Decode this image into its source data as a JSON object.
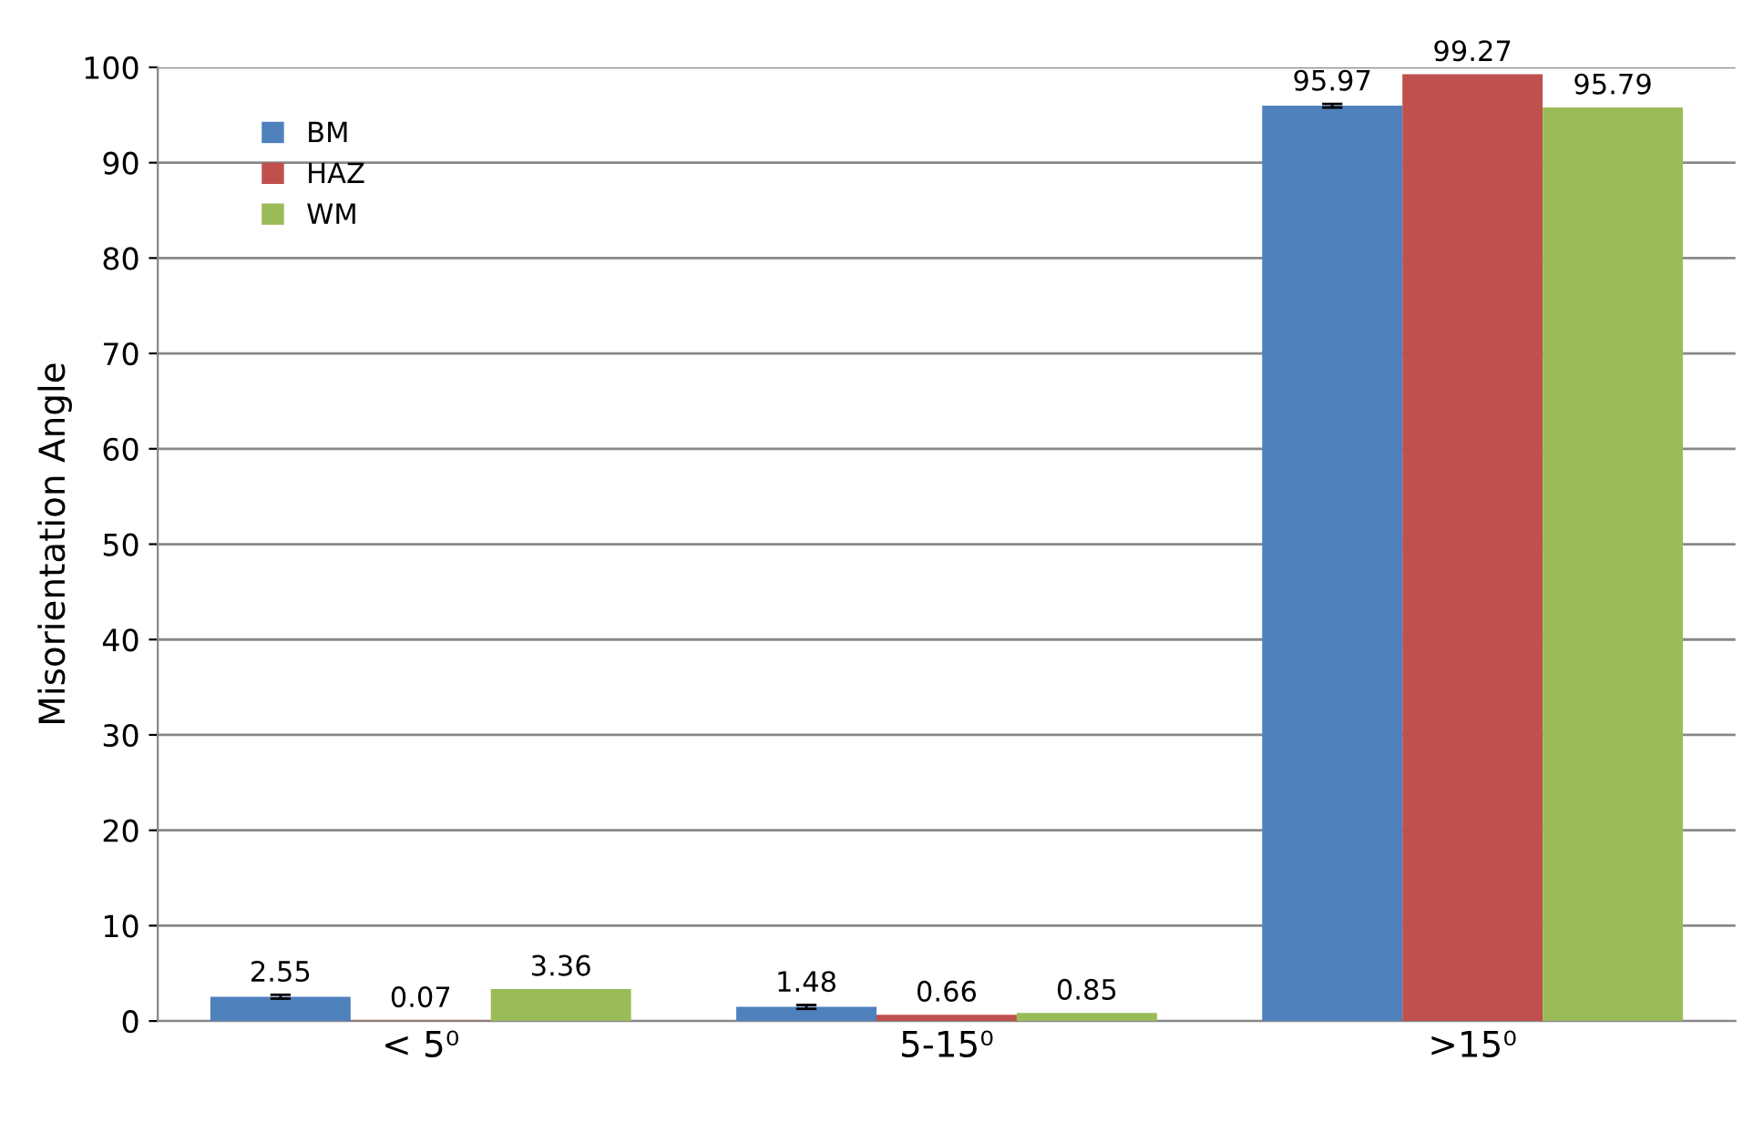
{
  "chart_data": {
    "type": "bar",
    "ylabel": "Misorientation Angle",
    "categories": [
      "< 5⁰",
      "5-15⁰",
      ">15⁰"
    ],
    "series": [
      {
        "name": "BM",
        "color": "#4f81bd",
        "values": [
          2.55,
          1.48,
          95.97
        ],
        "errors": [
          0.2,
          0.2,
          0.2
        ]
      },
      {
        "name": "HAZ",
        "color": "#c0504d",
        "values": [
          0.07,
          0.66,
          99.27
        ]
      },
      {
        "name": "WM",
        "color": "#9bbb59",
        "values": [
          3.36,
          0.85,
          95.79
        ]
      }
    ],
    "ylim": [
      0,
      100
    ],
    "yticks": [
      0,
      10,
      20,
      30,
      40,
      50,
      60,
      70,
      80,
      90,
      100
    ],
    "grid": "y",
    "legend": "top left",
    "data_labels": true
  }
}
